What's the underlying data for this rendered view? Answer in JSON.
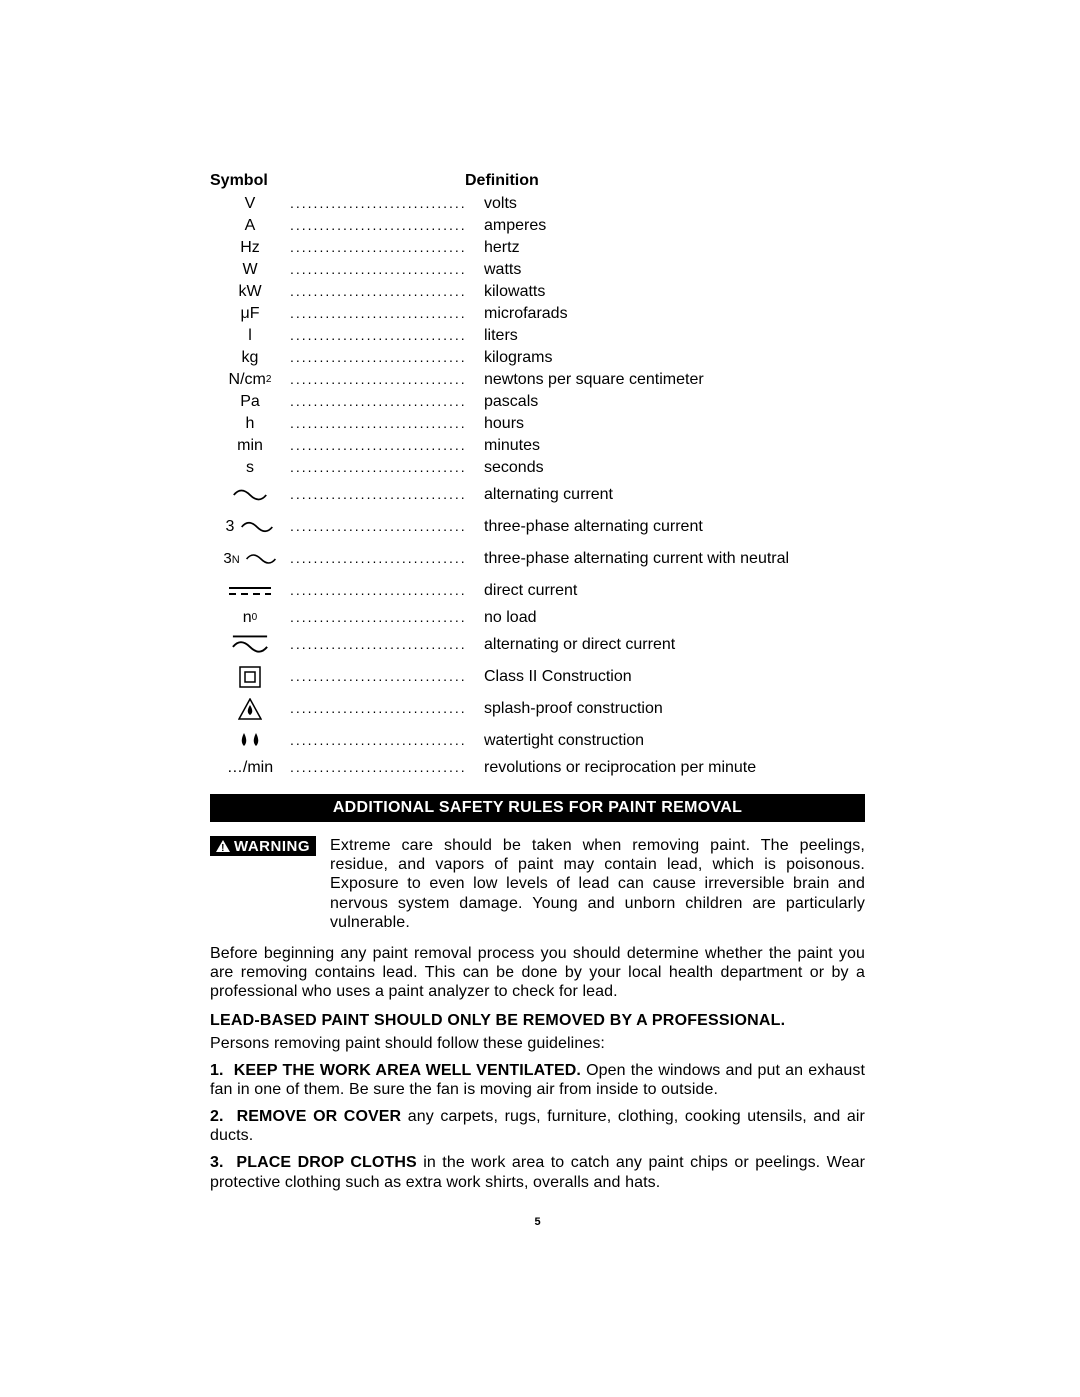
{
  "headers": {
    "symbol": "Symbol",
    "definition": "Definition"
  },
  "dots": "..............................",
  "rows": [
    {
      "sym": "V",
      "def": "volts",
      "type": "text"
    },
    {
      "sym": "A",
      "def": "amperes",
      "type": "text"
    },
    {
      "sym": "Hz",
      "def": "hertz",
      "type": "text"
    },
    {
      "sym": "W",
      "def": "watts",
      "type": "text"
    },
    {
      "sym": "kW",
      "def": "kilowatts",
      "type": "text"
    },
    {
      "sym": "μF",
      "def": "microfarads",
      "type": "text"
    },
    {
      "sym": "l",
      "def": "liters",
      "type": "text"
    },
    {
      "sym": "kg",
      "def": "kilograms",
      "type": "text"
    },
    {
      "sym": "N/cm²",
      "def": "newtons per square centimeter",
      "type": "ncm2"
    },
    {
      "sym": "Pa",
      "def": "pascals",
      "type": "text"
    },
    {
      "sym": "h",
      "def": "hours",
      "type": "text"
    },
    {
      "sym": "min",
      "def": "minutes",
      "type": "text"
    },
    {
      "sym": "s",
      "def": "seconds",
      "type": "text"
    },
    {
      "def": "alternating current",
      "type": "ac"
    },
    {
      "prefix": "3",
      "def": "three-phase alternating current",
      "type": "ac3"
    },
    {
      "prefix": "3N",
      "def": "three-phase alternating current with neutral",
      "type": "ac3n"
    },
    {
      "def": "direct current",
      "type": "dc"
    },
    {
      "sym": "n₀",
      "def": "no load",
      "type": "n0"
    },
    {
      "def": "alternating or direct current",
      "type": "acdc"
    },
    {
      "def": "Class II Construction",
      "type": "class2"
    },
    {
      "def": "splash-proof construction",
      "type": "splash"
    },
    {
      "def": "watertight construction",
      "type": "water"
    },
    {
      "sym": "…/min",
      "def": "revolutions or reciprocation per minute",
      "type": "text"
    }
  ],
  "section_title": "ADDITIONAL SAFETY RULES FOR PAINT REMOVAL",
  "warning_label": "WARNING",
  "warning_text": "Extreme care should be taken when removing paint. The peelings, residue, and vapors of paint may contain lead, which is poisonous. Exposure to even low levels of lead can cause irreversible brain and nervous system damage. Young and unborn children are particularly vulnerable.",
  "para1": "Before beginning any paint removal process you should determine whether the paint you are removing contains lead. This can be done by your local health department or by a professional who uses a paint analyzer to check for lead.",
  "bold_line": "LEAD-BASED PAINT SHOULD ONLY BE REMOVED BY A PROFESSIONAL.",
  "para2": "Persons removing paint should follow these guidelines:",
  "items": [
    {
      "num": "1.",
      "lead": "KEEP THE WORK AREA WELL VENTILATED.",
      "rest": " Open the windows and put an exhaust fan in one of them. Be sure the fan is moving air from inside to outside."
    },
    {
      "num": "2.",
      "lead": "REMOVE OR COVER",
      "rest": " any carpets, rugs, furniture, clothing, cooking utensils, and air ducts."
    },
    {
      "num": "3.",
      "lead": "PLACE DROP CLOTHS",
      "rest": " in the work area to catch any paint chips or peelings. Wear protective clothing such as extra work shirts, overalls and hats."
    }
  ],
  "page_number": "5",
  "colors": {
    "text": "#000000",
    "bg": "#ffffff",
    "bar_bg": "#000000",
    "bar_fg": "#ffffff"
  }
}
